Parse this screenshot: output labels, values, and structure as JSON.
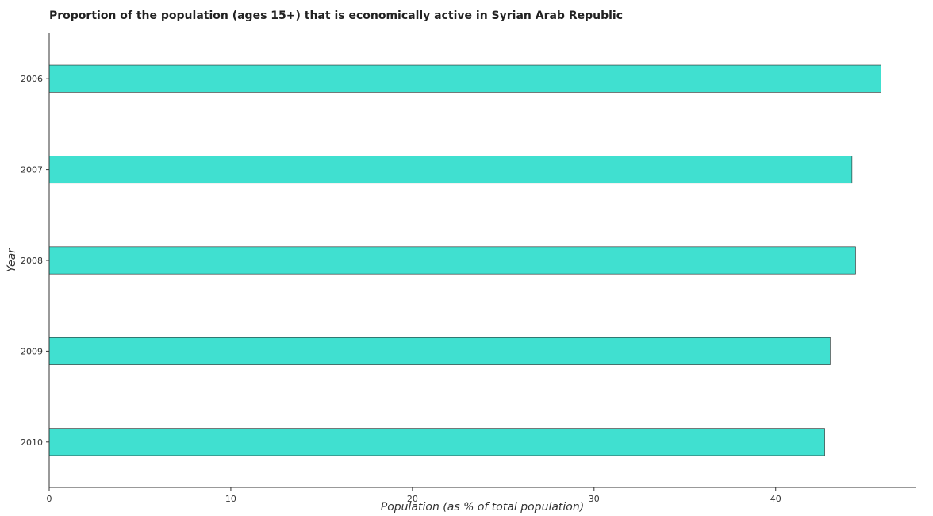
{
  "chart_data": {
    "type": "bar",
    "orientation": "horizontal",
    "title": "Proportion of the population (ages 15+) that is economically active in Syrian Arab Republic",
    "xlabel": "Population (as % of total population)",
    "ylabel": "Year",
    "categories": [
      "2006",
      "2007",
      "2008",
      "2009",
      "2010"
    ],
    "values": [
      45.8,
      44.2,
      44.4,
      43.0,
      42.7
    ],
    "xlim": [
      0,
      47.7
    ],
    "xticks": [
      0,
      10,
      20,
      30,
      40
    ],
    "grid": false,
    "legend": "none",
    "bar_color": "#40e0d0"
  }
}
